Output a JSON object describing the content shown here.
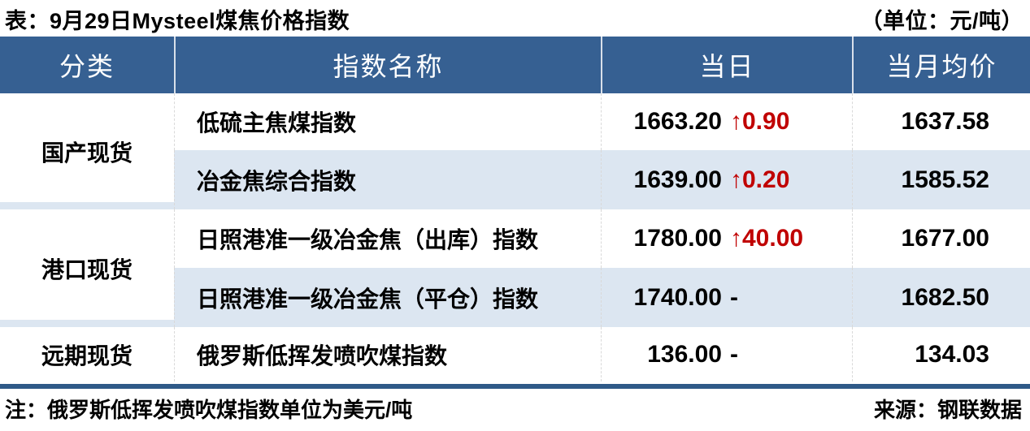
{
  "title": {
    "left": "表：9月29日Mysteel煤焦价格指数",
    "right": "（单位：元/吨）"
  },
  "table": {
    "headers": [
      "分类",
      "指数名称",
      "当日",
      "当月均价"
    ],
    "groups": [
      {
        "category": "国产现货",
        "rows": [
          {
            "name": "低硫主焦煤指数",
            "value": "1663.20",
            "change": "↑0.90",
            "change_type": "up",
            "avg": "1637.58"
          },
          {
            "name": "冶金焦综合指数",
            "value": "1639.00",
            "change": "↑0.20",
            "change_type": "up",
            "avg": "1585.52"
          }
        ]
      },
      {
        "category": "港口现货",
        "rows": [
          {
            "name": "日照港准一级冶金焦（出库）指数",
            "value": "1780.00",
            "change": "↑40.00",
            "change_type": "up",
            "avg": "1677.00"
          },
          {
            "name": "日照港准一级冶金焦（平仓）指数",
            "value": "1740.00",
            "change": "-",
            "change_type": "flat",
            "avg": "1682.50"
          }
        ]
      },
      {
        "category": "远期现货",
        "rows": [
          {
            "name": "俄罗斯低挥发喷吹煤指数",
            "value": "136.00",
            "change": "-",
            "change_type": "flat",
            "avg": "134.03"
          }
        ]
      }
    ]
  },
  "footer": {
    "note": "注：俄罗斯低挥发喷吹煤指数单位为美元/吨",
    "source": "来源：钢联数据"
  },
  "colors": {
    "header_bg": "#366092",
    "stripe": "#dce6f1",
    "up_red": "#c00000",
    "bottom_bar": "#2f5a88"
  }
}
